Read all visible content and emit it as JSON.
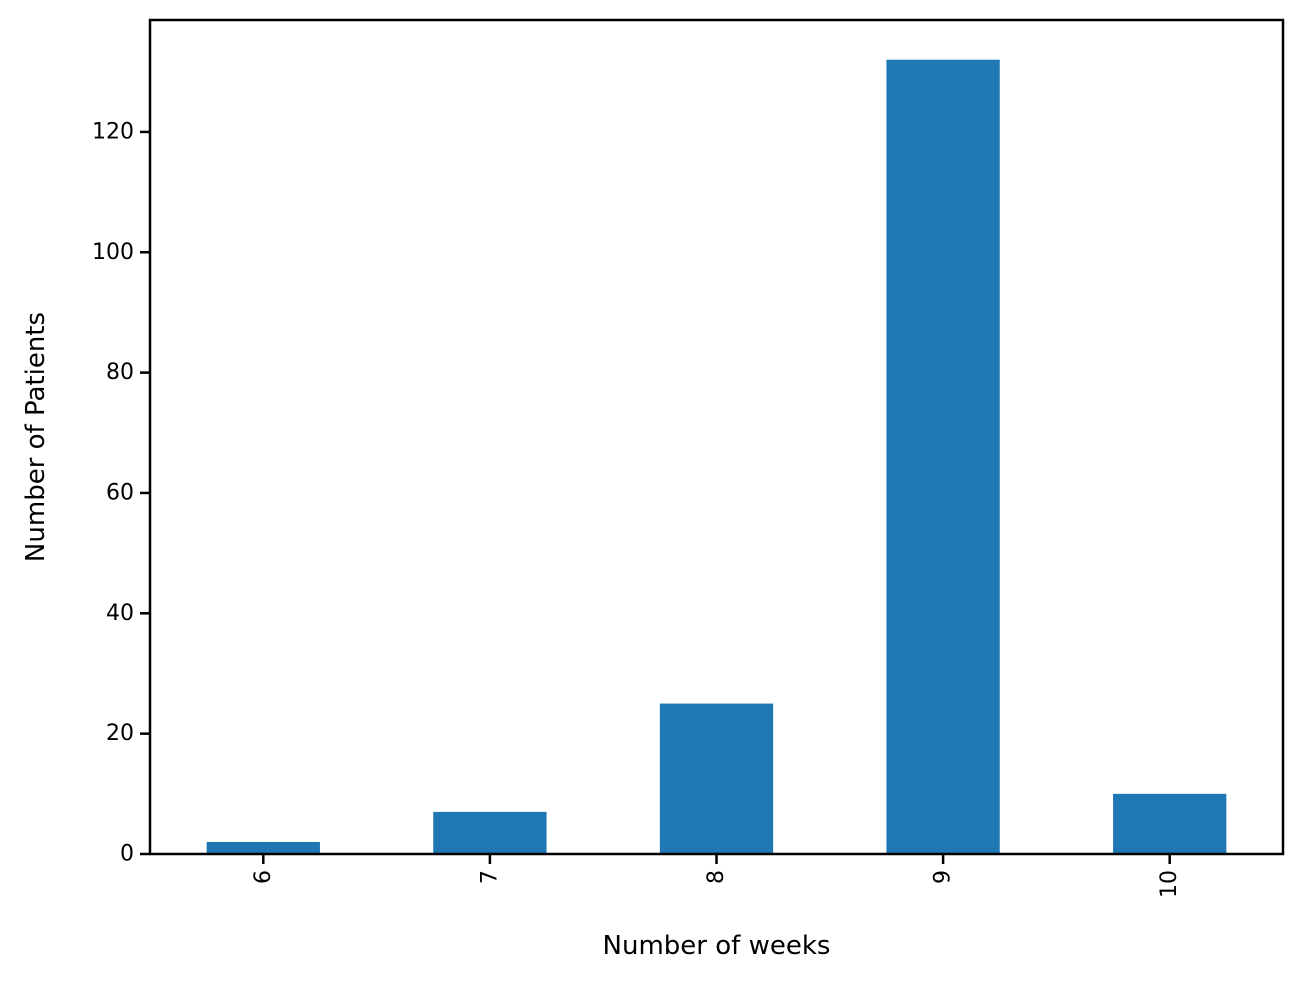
{
  "chart_data": {
    "type": "bar",
    "categories": [
      "6",
      "7",
      "8",
      "9",
      "10"
    ],
    "values": [
      2,
      7,
      25,
      132,
      10
    ],
    "xlabel": "Number of weeks",
    "ylabel": "Number of Patients",
    "ylim": [
      0,
      138.6
    ],
    "yticks": [
      0,
      20,
      40,
      60,
      80,
      100,
      120
    ],
    "ytick_labels": [
      "0",
      "20",
      "40",
      "60",
      "80",
      "100",
      "120"
    ],
    "xtick_rotation": "vertical",
    "bar_color": "#1f77b4",
    "grid": false,
    "legend": false
  }
}
